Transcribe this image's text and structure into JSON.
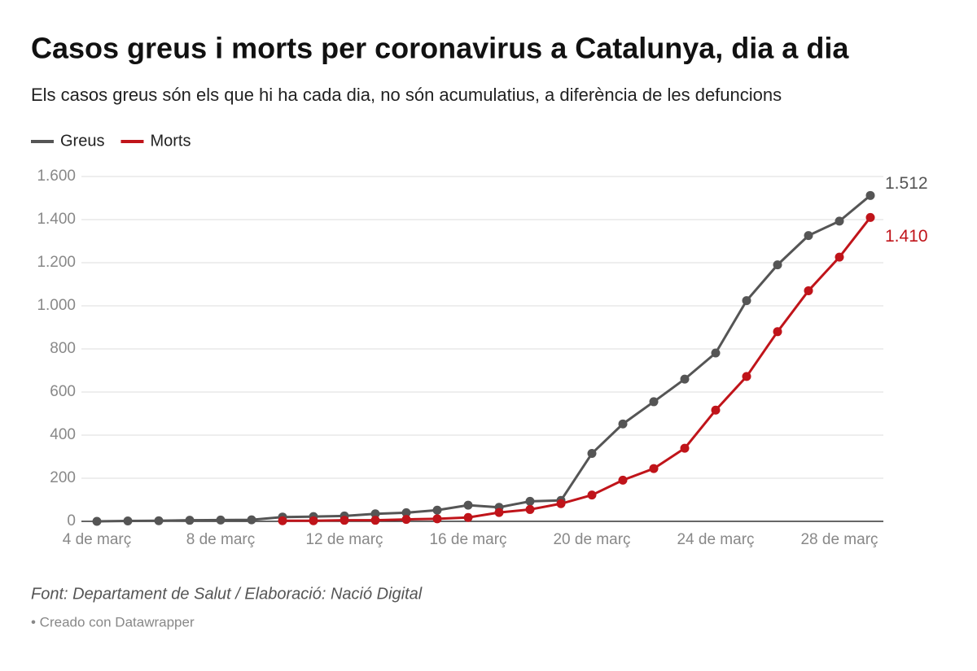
{
  "chart_data": {
    "type": "line",
    "title": "Casos greus i morts per coronavirus a Catalunya, dia a dia",
    "subtitle": "Els casos greus són els que hi ha cada dia, no són acumulatius, a diferència de les defuncions",
    "source": "Font: Departament de Salut / Elaboració: Nació Digital",
    "credit": "• Creado con Datawrapper",
    "categories": [
      "4 de març",
      null,
      null,
      null,
      "8 de març",
      null,
      null,
      null,
      "12 de març",
      null,
      null,
      null,
      "16 de març",
      null,
      null,
      null,
      "20 de març",
      null,
      null,
      null,
      "24 de març",
      null,
      null,
      null,
      "28 de març",
      null
    ],
    "series": [
      {
        "name": "Greus",
        "color": "#555555",
        "values": [
          0,
          2,
          3,
          5,
          6,
          7,
          20,
          22,
          25,
          35,
          40,
          52,
          75,
          65,
          93,
          97,
          315,
          452,
          555,
          660,
          781,
          1024,
          1190,
          1326,
          1393,
          1512
        ],
        "value_labels": [
          null,
          null,
          null,
          null,
          null,
          null,
          null,
          null,
          null,
          null,
          null,
          null,
          null,
          null,
          null,
          null,
          null,
          null,
          null,
          null,
          null,
          null,
          null,
          null,
          null,
          "1.512"
        ]
      },
      {
        "name": "Morts",
        "color": "#c0141a",
        "values": [
          null,
          null,
          null,
          null,
          null,
          null,
          3,
          3,
          5,
          5,
          9,
          12,
          18,
          41,
          55,
          82,
          122,
          191,
          245,
          339,
          516,
          672,
          880,
          1070,
          1226,
          1410
        ],
        "value_labels": [
          null,
          null,
          null,
          null,
          null,
          null,
          null,
          null,
          null,
          null,
          null,
          null,
          null,
          null,
          null,
          null,
          null,
          null,
          null,
          null,
          null,
          null,
          null,
          null,
          null,
          "1.410"
        ]
      }
    ],
    "ylim": [
      0,
      1600
    ],
    "yticks": [
      0,
      200,
      400,
      600,
      800,
      {
        "value": 1000,
        "label": "1.000"
      },
      {
        "value": 1200,
        "label": "1.200"
      },
      {
        "value": 1400,
        "label": "1.400"
      },
      {
        "value": 1600,
        "label": "1.600"
      }
    ],
    "grid": true
  }
}
